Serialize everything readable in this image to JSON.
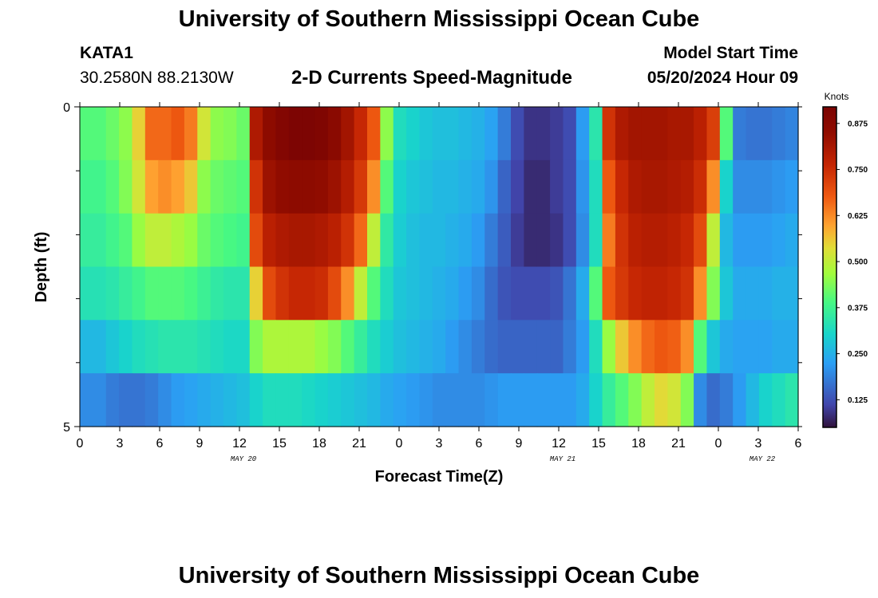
{
  "header": {
    "title": "University of Southern Mississippi Ocean Cube",
    "station": "KATA1",
    "coords": "30.2580N  88.2130W",
    "subtitle": "2-D Currents Speed-Magnitude",
    "model_start_label": "Model Start Time",
    "model_start_value": "05/20/2024 Hour 09"
  },
  "footer": {
    "title": "University of Southern Mississippi Ocean Cube"
  },
  "chart_data": {
    "type": "heatmap",
    "title": "2-D Currents Speed-Magnitude",
    "xlabel": "Forecast Time(Z)",
    "ylabel": "Depth (ft)",
    "x_unit": "forecast hour from 05/20 00Z",
    "x_range": [
      0,
      54
    ],
    "x_step_hours": 1,
    "x_tick_labels": [
      "0",
      "3",
      "6",
      "9",
      "12",
      "15",
      "18",
      "21",
      "0",
      "3",
      "6",
      "9",
      "12",
      "15",
      "18",
      "21",
      "0",
      "3",
      "6"
    ],
    "date_labels": [
      {
        "hour": 12,
        "label": "MAY 20"
      },
      {
        "hour": 36,
        "label": "MAY 21"
      },
      {
        "hour": 51,
        "label": "MAY 22"
      }
    ],
    "y_range": [
      0,
      5
    ],
    "y_tick_labels": [
      "0",
      "5"
    ],
    "depth_layers": 6,
    "colorbar": {
      "unit": "Knots",
      "min": 0.05,
      "max": 0.92,
      "ticks": [
        "0.875",
        "0.750",
        "0.625",
        "0.500",
        "0.375",
        "0.250",
        "0.125"
      ],
      "tick_values": [
        0.875,
        0.75,
        0.625,
        0.5,
        0.375,
        0.25,
        0.125
      ]
    },
    "values": [
      [
        0.4,
        0.4,
        0.42,
        0.45,
        0.55,
        0.66,
        0.66,
        0.68,
        0.64,
        0.52,
        0.45,
        0.44,
        0.42,
        0.8,
        0.86,
        0.89,
        0.91,
        0.91,
        0.9,
        0.87,
        0.82,
        0.76,
        0.68,
        0.45,
        0.32,
        0.3,
        0.28,
        0.27,
        0.27,
        0.26,
        0.25,
        0.23,
        0.18,
        0.12,
        0.09,
        0.09,
        0.1,
        0.12,
        0.22,
        0.34,
        0.74,
        0.8,
        0.82,
        0.82,
        0.82,
        0.81,
        0.81,
        0.78,
        0.72,
        0.4,
        0.18,
        0.17,
        0.17,
        0.18,
        0.19
      ],
      [
        0.38,
        0.38,
        0.4,
        0.44,
        0.52,
        0.6,
        0.62,
        0.6,
        0.56,
        0.45,
        0.42,
        0.41,
        0.4,
        0.74,
        0.83,
        0.85,
        0.86,
        0.86,
        0.85,
        0.83,
        0.79,
        0.73,
        0.62,
        0.4,
        0.3,
        0.28,
        0.27,
        0.26,
        0.26,
        0.25,
        0.24,
        0.21,
        0.15,
        0.11,
        0.08,
        0.08,
        0.1,
        0.12,
        0.21,
        0.32,
        0.68,
        0.76,
        0.8,
        0.81,
        0.81,
        0.8,
        0.79,
        0.75,
        0.62,
        0.3,
        0.2,
        0.2,
        0.2,
        0.21,
        0.22
      ],
      [
        0.36,
        0.36,
        0.38,
        0.4,
        0.46,
        0.5,
        0.5,
        0.48,
        0.46,
        0.42,
        0.4,
        0.39,
        0.38,
        0.7,
        0.78,
        0.8,
        0.81,
        0.81,
        0.8,
        0.78,
        0.74,
        0.66,
        0.5,
        0.35,
        0.29,
        0.27,
        0.26,
        0.26,
        0.25,
        0.24,
        0.22,
        0.18,
        0.14,
        0.1,
        0.08,
        0.08,
        0.09,
        0.12,
        0.2,
        0.32,
        0.64,
        0.74,
        0.78,
        0.79,
        0.79,
        0.78,
        0.76,
        0.7,
        0.5,
        0.26,
        0.22,
        0.22,
        0.22,
        0.23,
        0.24
      ],
      [
        0.33,
        0.33,
        0.34,
        0.36,
        0.38,
        0.4,
        0.4,
        0.4,
        0.39,
        0.37,
        0.35,
        0.34,
        0.34,
        0.55,
        0.7,
        0.74,
        0.76,
        0.76,
        0.75,
        0.7,
        0.62,
        0.5,
        0.4,
        0.32,
        0.28,
        0.27,
        0.26,
        0.25,
        0.24,
        0.22,
        0.2,
        0.16,
        0.13,
        0.12,
        0.12,
        0.12,
        0.13,
        0.17,
        0.24,
        0.4,
        0.68,
        0.73,
        0.76,
        0.77,
        0.77,
        0.76,
        0.74,
        0.62,
        0.44,
        0.28,
        0.24,
        0.24,
        0.24,
        0.25,
        0.25
      ],
      [
        0.26,
        0.26,
        0.28,
        0.3,
        0.32,
        0.33,
        0.34,
        0.34,
        0.34,
        0.33,
        0.32,
        0.31,
        0.31,
        0.44,
        0.48,
        0.48,
        0.48,
        0.48,
        0.46,
        0.44,
        0.4,
        0.36,
        0.32,
        0.29,
        0.27,
        0.26,
        0.25,
        0.24,
        0.22,
        0.2,
        0.18,
        0.16,
        0.15,
        0.15,
        0.15,
        0.15,
        0.15,
        0.18,
        0.22,
        0.32,
        0.46,
        0.56,
        0.62,
        0.66,
        0.68,
        0.67,
        0.62,
        0.4,
        0.28,
        0.24,
        0.23,
        0.23,
        0.23,
        0.24,
        0.24
      ],
      [
        0.2,
        0.2,
        0.18,
        0.17,
        0.17,
        0.18,
        0.2,
        0.22,
        0.23,
        0.24,
        0.25,
        0.26,
        0.27,
        0.3,
        0.32,
        0.32,
        0.32,
        0.31,
        0.3,
        0.29,
        0.28,
        0.27,
        0.26,
        0.24,
        0.23,
        0.22,
        0.21,
        0.2,
        0.2,
        0.2,
        0.2,
        0.21,
        0.22,
        0.22,
        0.22,
        0.22,
        0.22,
        0.22,
        0.24,
        0.3,
        0.36,
        0.4,
        0.44,
        0.5,
        0.54,
        0.52,
        0.44,
        0.2,
        0.16,
        0.18,
        0.22,
        0.26,
        0.3,
        0.32,
        0.34
      ]
    ]
  }
}
